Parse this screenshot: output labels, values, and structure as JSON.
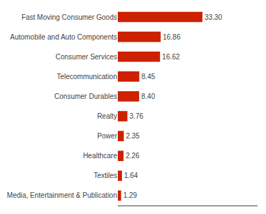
{
  "chart_data": {
    "type": "bar",
    "orientation": "horizontal",
    "categories": [
      "Media, Entertainment & Publication",
      "Textiles",
      "Healthcare",
      "Power",
      "Realty",
      "Consumer Durables",
      "Telecommunication",
      "Consumer Services",
      "Automobile and Auto Components",
      "Fast Moving Consumer Goods"
    ],
    "values": [
      1.29,
      1.64,
      2.26,
      2.35,
      3.76,
      8.4,
      8.45,
      16.62,
      16.86,
      33.3
    ],
    "value_labels": [
      "1.29",
      "1.64",
      "2.26",
      "2.35",
      "3.76",
      "8.40",
      "8.45",
      "16.62",
      "16.86",
      "33.30"
    ],
    "data_labels": true,
    "color": "#cc2200",
    "xlim": [
      0,
      55
    ],
    "grid": false,
    "tick_labels": "y"
  }
}
